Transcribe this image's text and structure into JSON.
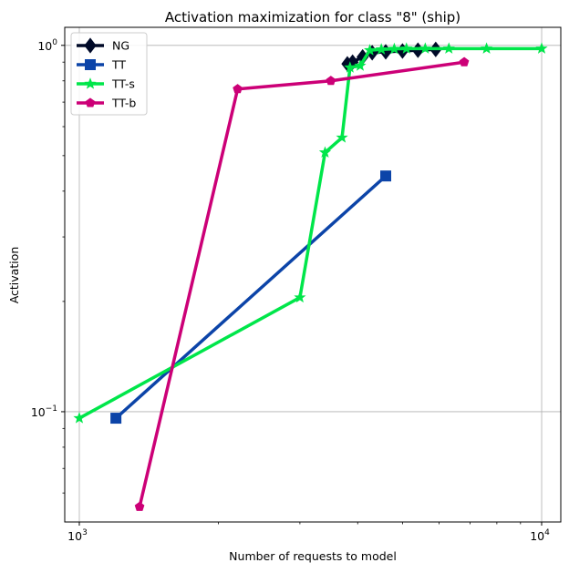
{
  "chart_data": {
    "type": "line",
    "title": "Activation maximization for class \"8\" (ship)",
    "xlabel": "Number of requests to model",
    "ylabel": "Activation",
    "x_scale": "log",
    "y_scale": "log",
    "xlim": [
      930,
      11000
    ],
    "ylim": [
      0.05,
      1.12
    ],
    "grid": "major",
    "legend_position": "top-left",
    "x_ticks": [
      {
        "value": 1000,
        "base": "10",
        "exp": "3"
      },
      {
        "value": 10000,
        "base": "10",
        "exp": "4"
      }
    ],
    "y_ticks": [
      {
        "value": 0.1,
        "base": "10",
        "exp": "−1"
      },
      {
        "value": 1,
        "label": "10",
        "exp": "0"
      }
    ],
    "series": [
      {
        "name": "NG",
        "color": "#000a28",
        "marker": "diamond",
        "x": [
          3800,
          3900,
          4100,
          4300,
          4600,
          5000,
          5400,
          5900
        ],
        "y": [
          0.89,
          0.9,
          0.93,
          0.955,
          0.96,
          0.965,
          0.97,
          0.975
        ]
      },
      {
        "name": "TT",
        "color": "#0c44a8",
        "marker": "square",
        "x": [
          1200,
          4600
        ],
        "y": [
          0.096,
          0.44
        ]
      },
      {
        "name": "TT-s",
        "color": "#00e64a",
        "marker": "star",
        "x": [
          1000,
          3000,
          3400,
          3700,
          3850,
          4050,
          4250,
          4500,
          4800,
          5100,
          5600,
          6300,
          7600,
          10000
        ],
        "y": [
          0.096,
          0.205,
          0.51,
          0.56,
          0.87,
          0.88,
          0.97,
          0.975,
          0.978,
          0.98,
          0.98,
          0.98,
          0.98,
          0.98
        ]
      },
      {
        "name": "TT-b",
        "color": "#cc0077",
        "marker": "pentagon",
        "x": [
          1350,
          2200,
          3500,
          6800
        ],
        "y": [
          0.055,
          0.76,
          0.8,
          0.9
        ]
      }
    ]
  }
}
